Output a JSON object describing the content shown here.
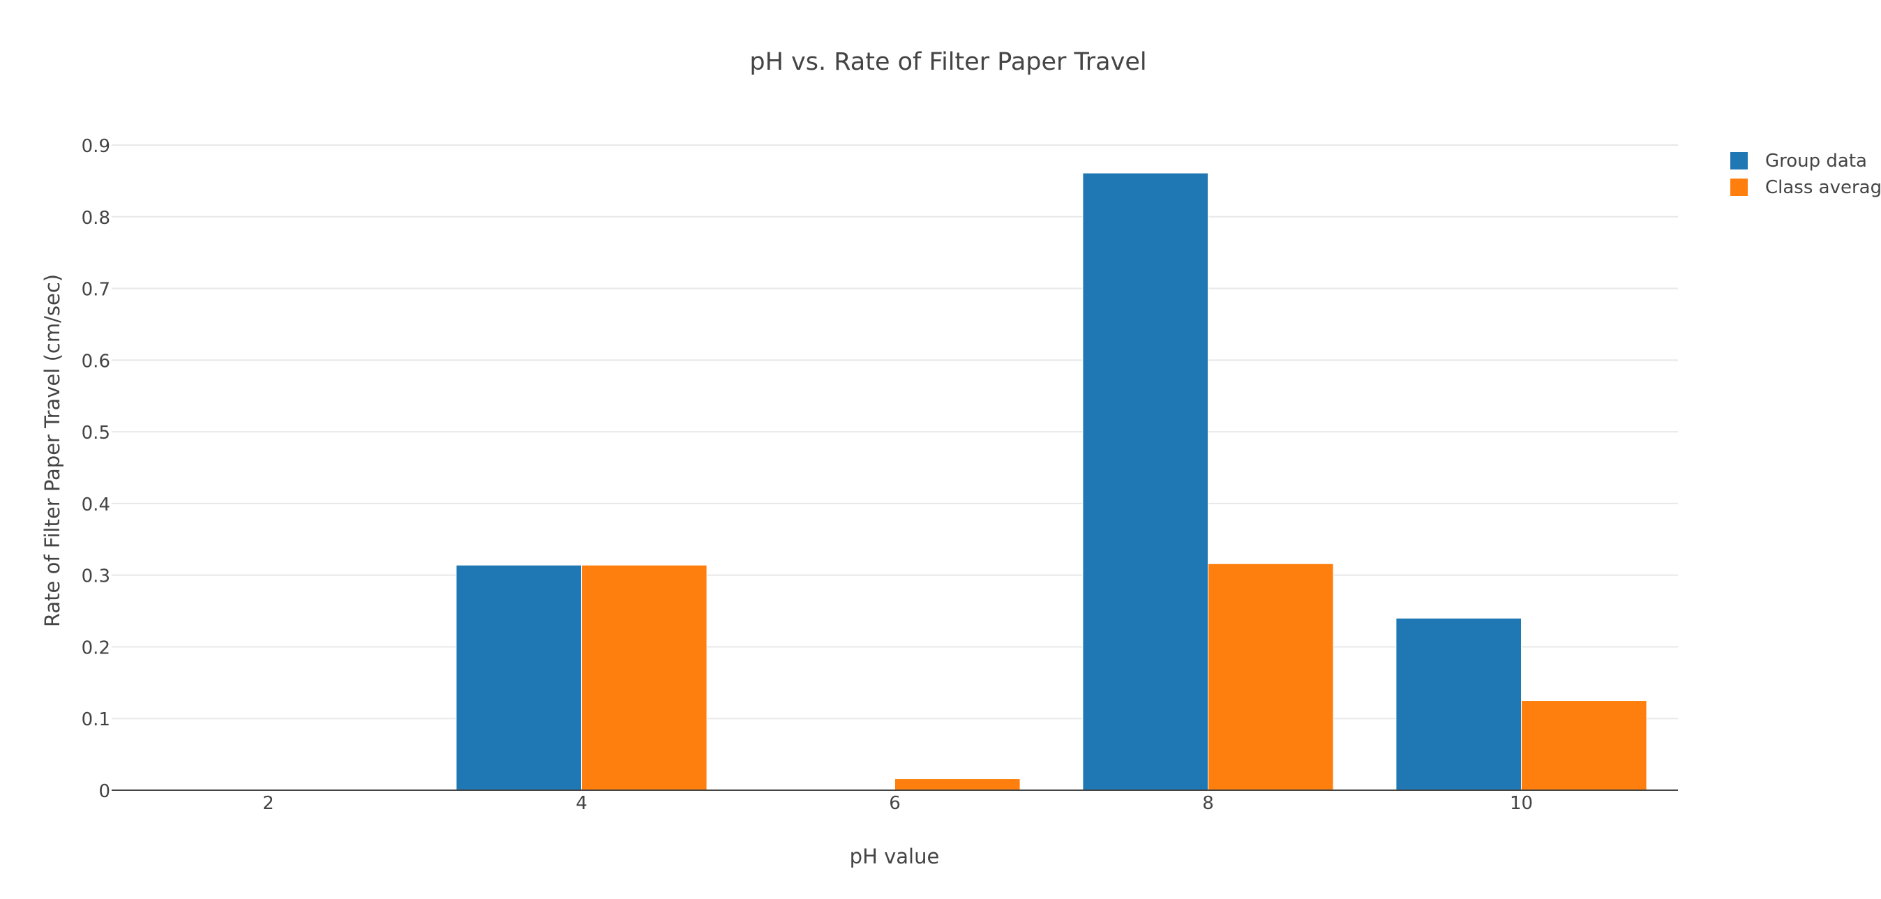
{
  "chart_data": {
    "type": "bar",
    "title": "pH vs. Rate of Filter Paper Travel",
    "xlabel": "pH value",
    "ylabel": "Rate of Filter Paper Travel (cm/sec)",
    "categories": [
      "2",
      "4",
      "6",
      "8",
      "10"
    ],
    "y_ticks": [
      "0",
      "0.1",
      "0.2",
      "0.3",
      "0.4",
      "0.5",
      "0.6",
      "0.7",
      "0.8",
      "0.9"
    ],
    "ylim": [
      0,
      0.9
    ],
    "grid": true,
    "legend_position": "top-right",
    "series": [
      {
        "name": "Group data",
        "color": "#1f77b4",
        "values": [
          0,
          0.314,
          0,
          0.861,
          0.24
        ]
      },
      {
        "name": "Class average",
        "color": "#ff7f0e",
        "values": [
          0,
          0.314,
          0.016,
          0.316,
          0.125
        ]
      }
    ]
  }
}
